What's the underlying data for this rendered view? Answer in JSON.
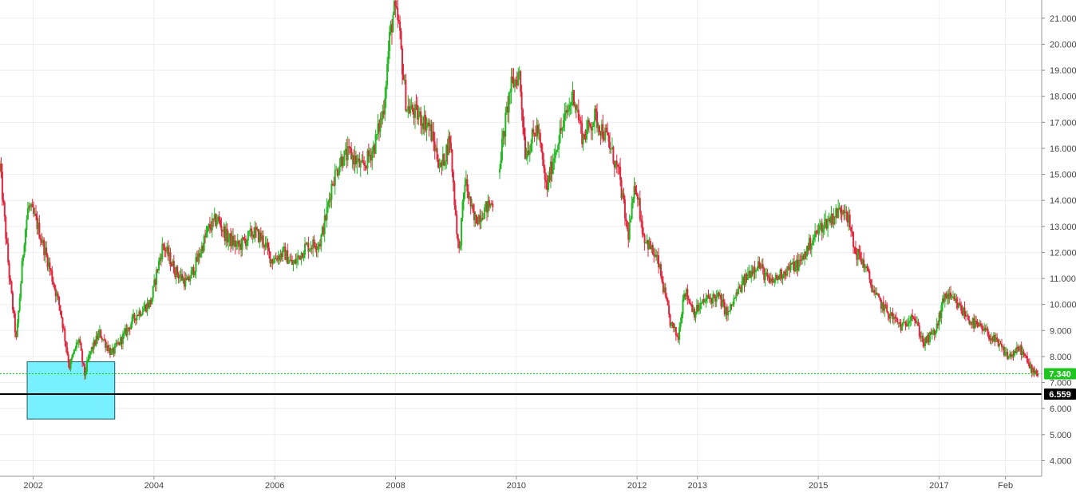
{
  "chart_data": {
    "type": "candlestick",
    "title": "",
    "xlabel": "",
    "ylabel": "",
    "ylim": [
      3.4,
      21.7
    ],
    "grid": true,
    "y_ticks": [
      "4.000",
      "5.000",
      "6.000",
      "7.000",
      "8.000",
      "9.000",
      "10.000",
      "11.000",
      "12.000",
      "13.000",
      "14.000",
      "15.000",
      "16.000",
      "17.000",
      "18.000",
      "19.000",
      "20.000",
      "21.000"
    ],
    "x_ticks": [
      {
        "label": "2002",
        "t": 2002.0
      },
      {
        "label": "2004",
        "t": 2004.0
      },
      {
        "label": "2006",
        "t": 2006.0
      },
      {
        "label": "2008",
        "t": 2008.0
      },
      {
        "label": "2010",
        "t": 2010.0
      },
      {
        "label": "2012",
        "t": 2012.0
      },
      {
        "label": "2013",
        "t": 2013.0
      },
      {
        "label": "2015",
        "t": 2015.0
      },
      {
        "label": "2017",
        "t": 2017.0
      },
      {
        "label": "Feb",
        "t": 2018.1
      }
    ],
    "time_range": [
      2001.45,
      2018.7
    ],
    "price_path": [
      [
        2001.45,
        15.3
      ],
      [
        2001.6,
        11.2
      ],
      [
        2001.72,
        8.6
      ],
      [
        2001.85,
        12.5
      ],
      [
        2001.92,
        13.8
      ],
      [
        2002.05,
        13.2
      ],
      [
        2002.25,
        11.6
      ],
      [
        2002.45,
        9.8
      ],
      [
        2002.6,
        7.6
      ],
      [
        2002.75,
        8.7
      ],
      [
        2002.85,
        7.3
      ],
      [
        2002.95,
        8.2
      ],
      [
        2003.1,
        8.9
      ],
      [
        2003.3,
        8.1
      ],
      [
        2003.5,
        8.8
      ],
      [
        2003.7,
        9.6
      ],
      [
        2003.95,
        10.1
      ],
      [
        2004.05,
        11.3
      ],
      [
        2004.15,
        12.3
      ],
      [
        2004.35,
        11.3
      ],
      [
        2004.55,
        10.8
      ],
      [
        2004.7,
        11.6
      ],
      [
        2004.9,
        12.9
      ],
      [
        2005.05,
        13.3
      ],
      [
        2005.2,
        12.6
      ],
      [
        2005.4,
        12.2
      ],
      [
        2005.65,
        12.8
      ],
      [
        2005.8,
        12.5
      ],
      [
        2005.95,
        11.7
      ],
      [
        2006.15,
        12.0
      ],
      [
        2006.3,
        11.5
      ],
      [
        2006.5,
        12.2
      ],
      [
        2006.75,
        12.4
      ],
      [
        2006.85,
        13.4
      ],
      [
        2006.95,
        14.7
      ],
      [
        2007.1,
        15.6
      ],
      [
        2007.25,
        15.8
      ],
      [
        2007.45,
        15.2
      ],
      [
        2007.65,
        16.1
      ],
      [
        2007.8,
        17.5
      ],
      [
        2007.9,
        20.2
      ],
      [
        2007.97,
        21.3
      ],
      [
        2008.05,
        20.8
      ],
      [
        2008.12,
        19.0
      ],
      [
        2008.18,
        17.6
      ],
      [
        2008.35,
        17.3
      ],
      [
        2008.55,
        16.9
      ],
      [
        2008.75,
        15.2
      ],
      [
        2008.9,
        16.4
      ],
      [
        2008.98,
        13.9
      ],
      [
        2009.05,
        11.9
      ],
      [
        2009.15,
        14.8
      ],
      [
        2009.3,
        13.2
      ],
      [
        2009.5,
        13.7
      ],
      [
        2009.65,
        14.0
      ],
      [
        2009.75,
        15.9
      ],
      [
        2009.9,
        18.3
      ],
      [
        2010.05,
        18.9
      ],
      [
        2010.15,
        15.8
      ],
      [
        2010.35,
        16.8
      ],
      [
        2010.5,
        14.4
      ],
      [
        2010.65,
        16.0
      ],
      [
        2010.8,
        17.1
      ],
      [
        2010.95,
        18.1
      ],
      [
        2011.1,
        16.4
      ],
      [
        2011.3,
        17.2
      ],
      [
        2011.5,
        16.4
      ],
      [
        2011.7,
        15.0
      ],
      [
        2011.85,
        12.6
      ],
      [
        2011.98,
        14.7
      ],
      [
        2012.1,
        12.7
      ],
      [
        2012.35,
        11.6
      ],
      [
        2012.55,
        9.3
      ],
      [
        2012.68,
        8.7
      ],
      [
        2012.78,
        10.6
      ],
      [
        2012.95,
        9.7
      ],
      [
        2013.15,
        10.2
      ],
      [
        2013.35,
        10.3
      ],
      [
        2013.5,
        9.6
      ],
      [
        2013.65,
        10.4
      ],
      [
        2013.85,
        11.2
      ],
      [
        2014.0,
        11.6
      ],
      [
        2014.2,
        10.8
      ],
      [
        2014.45,
        11.3
      ],
      [
        2014.7,
        11.6
      ],
      [
        2014.9,
        12.5
      ],
      [
        2015.05,
        13.0
      ],
      [
        2015.25,
        13.4
      ],
      [
        2015.45,
        13.8
      ],
      [
        2015.6,
        12.1
      ],
      [
        2015.75,
        11.6
      ],
      [
        2015.95,
        10.3
      ],
      [
        2016.15,
        9.7
      ],
      [
        2016.4,
        9.1
      ],
      [
        2016.55,
        9.7
      ],
      [
        2016.75,
        8.5
      ],
      [
        2016.95,
        9.0
      ],
      [
        2017.1,
        10.4
      ],
      [
        2017.3,
        10.0
      ],
      [
        2017.55,
        9.3
      ],
      [
        2017.8,
        8.9
      ],
      [
        2018.0,
        8.4
      ],
      [
        2018.15,
        8.0
      ],
      [
        2018.35,
        8.3
      ],
      [
        2018.5,
        7.6
      ],
      [
        2018.65,
        7.34
      ]
    ],
    "current_price": {
      "value": 7.34,
      "label": "7.340",
      "color": "#1ec51e"
    },
    "support_line": {
      "value": 6.559,
      "label": "6.559",
      "color": "#000000"
    },
    "highlight_zone": {
      "t_start": 2001.9,
      "t_end": 2003.35,
      "y_low": 5.6,
      "y_high": 7.8,
      "fill": "#78f0ff",
      "stroke": "#1a5a66"
    },
    "up_color": "#22b822",
    "down_color": "#e0263c"
  }
}
